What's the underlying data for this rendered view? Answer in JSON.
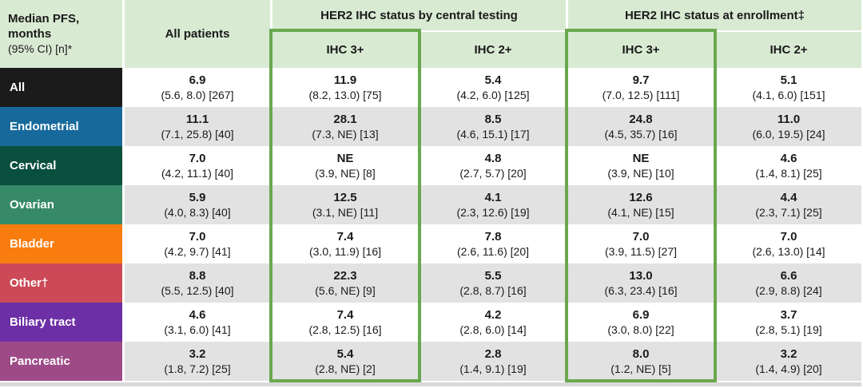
{
  "colors": {
    "header_bg": "#d9ead3",
    "accent_green": "#6aa84f",
    "row_alt_bg": "#e2e2e2",
    "bottom_bar": "#d9d9d9"
  },
  "header": {
    "corner_title": "Median PFS, months",
    "corner_subtitle": "(95% CI) [n]*",
    "all_patients": "All patients",
    "group_central": "HER2 IHC status by central testing",
    "group_enrollment": "HER2 IHC status at enrollment‡",
    "sub_columns": [
      "IHC 3+",
      "IHC 2+",
      "IHC 3+",
      "IHC 2+"
    ]
  },
  "chart_data": {
    "type": "table",
    "title": "Median PFS, months (95% CI) [n]*",
    "column_groups": [
      "All patients",
      "HER2 IHC status by central testing",
      "HER2 IHC status at enrollment‡"
    ],
    "columns": [
      "All patients",
      "Central testing IHC 3+",
      "Central testing IHC 2+",
      "Enrollment IHC 3+",
      "Enrollment IHC 2+"
    ],
    "highlight_note": "IHC 3+ columns outlined in green",
    "rows": [
      {
        "label": "All",
        "color": "#1b1b1b",
        "cells": [
          {
            "median": "6.9",
            "ci": "(5.6, 8.0) [267]"
          },
          {
            "median": "11.9",
            "ci": "(8.2, 13.0) [75]"
          },
          {
            "median": "5.4",
            "ci": "(4.2, 6.0) [125]"
          },
          {
            "median": "9.7",
            "ci": "(7.0, 12.5) [111]"
          },
          {
            "median": "5.1",
            "ci": "(4.1, 6.0) [151]"
          }
        ]
      },
      {
        "label": "Endometrial",
        "color": "#17699c",
        "cells": [
          {
            "median": "11.1",
            "ci": "(7.1, 25.8) [40]"
          },
          {
            "median": "28.1",
            "ci": "(7.3, NE) [13]"
          },
          {
            "median": "8.5",
            "ci": "(4.6, 15.1) [17]"
          },
          {
            "median": "24.8",
            "ci": "(4.5, 35.7) [16]"
          },
          {
            "median": "11.0",
            "ci": "(6.0, 19.5) [24]"
          }
        ]
      },
      {
        "label": "Cervical",
        "color": "#094f3d",
        "cells": [
          {
            "median": "7.0",
            "ci": "(4.2, 11.1) [40]"
          },
          {
            "median": "NE",
            "ci": "(3.9, NE) [8]"
          },
          {
            "median": "4.8",
            "ci": "(2.7, 5.7) [20]"
          },
          {
            "median": "NE",
            "ci": "(3.9, NE) [10]"
          },
          {
            "median": "4.6",
            "ci": "(1.4, 8.1) [25]"
          }
        ]
      },
      {
        "label": "Ovarian",
        "color": "#378a67",
        "cells": [
          {
            "median": "5.9",
            "ci": "(4.0, 8.3) [40]"
          },
          {
            "median": "12.5",
            "ci": "(3.1, NE) [11]"
          },
          {
            "median": "4.1",
            "ci": "(2.3, 12.6) [19]"
          },
          {
            "median": "12.6",
            "ci": "(4.1, NE) [15]"
          },
          {
            "median": "4.4",
            "ci": "(2.3, 7.1) [25]"
          }
        ]
      },
      {
        "label": "Bladder",
        "color": "#f87d0e",
        "cells": [
          {
            "median": "7.0",
            "ci": "(4.2, 9.7) [41]"
          },
          {
            "median": "7.4",
            "ci": "(3.0, 11.9) [16]"
          },
          {
            "median": "7.8",
            "ci": "(2.6, 11.6) [20]"
          },
          {
            "median": "7.0",
            "ci": "(3.9, 11.5) [27]"
          },
          {
            "median": "7.0",
            "ci": "(2.6, 13.0) [14]"
          }
        ]
      },
      {
        "label": "Other†",
        "color": "#cc4a57",
        "cells": [
          {
            "median": "8.8",
            "ci": "(5.5, 12.5) [40]"
          },
          {
            "median": "22.3",
            "ci": "(5.6, NE) [9]"
          },
          {
            "median": "5.5",
            "ci": "(2.8, 8.7) [16]"
          },
          {
            "median": "13.0",
            "ci": "(6.3, 23.4) [16]"
          },
          {
            "median": "6.6",
            "ci": "(2.9, 8.8) [24]"
          }
        ]
      },
      {
        "label": "Biliary tract",
        "color": "#6c2fa5",
        "cells": [
          {
            "median": "4.6",
            "ci": "(3.1, 6.0) [41]"
          },
          {
            "median": "7.4",
            "ci": "(2.8, 12.5) [16]"
          },
          {
            "median": "4.2",
            "ci": "(2.8, 6.0) [14]"
          },
          {
            "median": "6.9",
            "ci": "(3.0, 8.0) [22]"
          },
          {
            "median": "3.7",
            "ci": "(2.8, 5.1) [19]"
          }
        ]
      },
      {
        "label": "Pancreatic",
        "color": "#9d4a86",
        "cells": [
          {
            "median": "3.2",
            "ci": "(1.8, 7.2) [25]"
          },
          {
            "median": "5.4",
            "ci": "(2.8, NE) [2]"
          },
          {
            "median": "2.8",
            "ci": "(1.4, 9.1) [19]"
          },
          {
            "median": "8.0",
            "ci": "(1.2, NE) [5]"
          },
          {
            "median": "3.2",
            "ci": "(1.4, 4.9) [20]"
          }
        ]
      }
    ]
  }
}
